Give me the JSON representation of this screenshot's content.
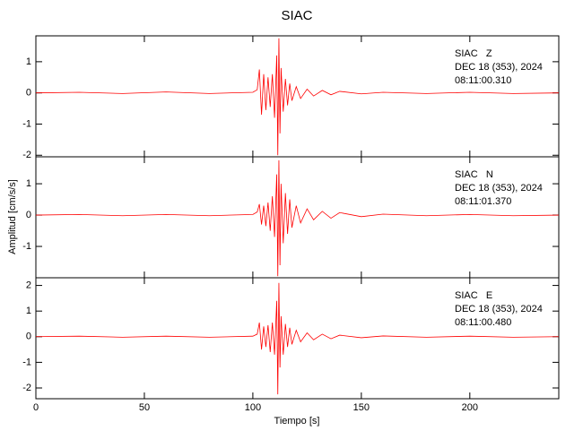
{
  "chart_data": [
    {
      "type": "line",
      "title": "SIAC",
      "color": "#ff0000",
      "annotations": [
        "SIAC   Z",
        "DEC 18 (353), 2024",
        "08:11:00.310"
      ],
      "x": [
        0,
        20,
        40,
        60,
        80,
        100,
        102,
        103,
        104,
        105,
        106,
        107,
        108,
        109,
        110,
        111,
        111.5,
        112,
        112.5,
        113,
        114,
        115,
        116,
        117,
        118,
        120,
        122,
        125,
        128,
        132,
        136,
        140,
        150,
        160,
        180,
        200,
        220,
        241
      ],
      "values": [
        0,
        0.02,
        -0.02,
        0.03,
        -0.02,
        0.02,
        0.1,
        0.75,
        -0.7,
        0.6,
        -0.55,
        0.5,
        -0.45,
        0.6,
        -0.8,
        1.2,
        -2.0,
        1.75,
        -1.3,
        0.8,
        -0.6,
        0.45,
        -0.4,
        0.3,
        -0.25,
        0.2,
        -0.18,
        0.12,
        -0.1,
        0.08,
        -0.06,
        0.05,
        -0.03,
        0.02,
        -0.02,
        0.02,
        -0.02,
        0
      ],
      "xlim": [
        0,
        241
      ],
      "ylim": [
        -2.05,
        1.83
      ],
      "yticks": [
        -2,
        -1,
        0,
        1
      ]
    },
    {
      "type": "line",
      "ylabel": "Amplitud [cm/s/s]",
      "color": "#ff0000",
      "annotations": [
        "SIAC   N",
        "DEC 18 (353), 2024",
        "08:11:01.370"
      ],
      "x": [
        0,
        20,
        40,
        60,
        80,
        100,
        102,
        103,
        104,
        105,
        106,
        107,
        108,
        109,
        110,
        111,
        111.5,
        112,
        112.5,
        113,
        114,
        115,
        116,
        117,
        118,
        120,
        122,
        125,
        128,
        132,
        136,
        140,
        150,
        160,
        180,
        200,
        220,
        241
      ],
      "values": [
        0,
        0.02,
        -0.02,
        0.02,
        -0.02,
        0.02,
        0.1,
        0.35,
        -0.3,
        0.3,
        -0.35,
        0.4,
        -0.5,
        0.6,
        -0.7,
        1.3,
        -1.95,
        1.75,
        -1.6,
        1.0,
        -0.9,
        0.7,
        -0.6,
        0.5,
        -0.4,
        0.3,
        -0.25,
        0.2,
        -0.15,
        0.12,
        -0.1,
        0.08,
        -0.05,
        0.03,
        -0.02,
        0.02,
        -0.02,
        0
      ],
      "xlim": [
        0,
        241
      ],
      "ylim": [
        -2.0,
        1.86
      ],
      "yticks": [
        -1,
        0,
        1
      ]
    },
    {
      "type": "line",
      "xlabel": "Tiempo [s]",
      "color": "#ff0000",
      "annotations": [
        "SIAC   E",
        "DEC 18 (353), 2024",
        "08:11:00.480"
      ],
      "x": [
        0,
        20,
        40,
        60,
        80,
        100,
        102,
        103,
        104,
        105,
        106,
        107,
        108,
        109,
        110,
        111,
        111.5,
        112,
        112.5,
        113,
        114,
        115,
        116,
        117,
        118,
        120,
        122,
        125,
        128,
        132,
        136,
        140,
        150,
        160,
        180,
        200,
        220,
        241
      ],
      "values": [
        0,
        0.02,
        -0.02,
        0.02,
        -0.02,
        0.02,
        0.1,
        0.55,
        -0.5,
        0.4,
        -0.4,
        0.45,
        -0.6,
        0.55,
        -0.7,
        1.4,
        -2.25,
        2.1,
        -1.2,
        0.8,
        -0.7,
        0.5,
        -0.4,
        0.35,
        -0.3,
        0.25,
        -0.2,
        0.15,
        -0.12,
        0.1,
        -0.08,
        0.06,
        -0.04,
        0.03,
        -0.02,
        0.02,
        -0.02,
        0
      ],
      "xlim": [
        0,
        241
      ],
      "ylim": [
        -2.42,
        2.3
      ],
      "yticks": [
        -2,
        -1,
        0,
        1,
        2
      ],
      "xticks": [
        0,
        50,
        100,
        150,
        200
      ]
    }
  ]
}
